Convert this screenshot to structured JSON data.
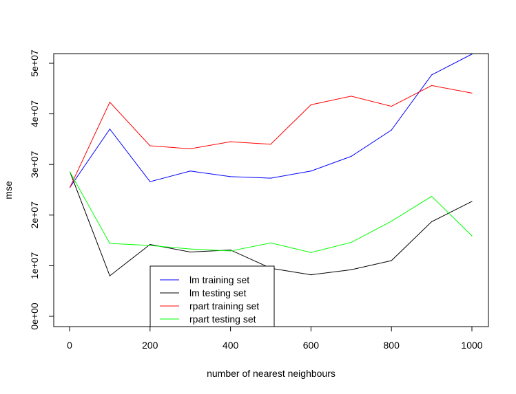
{
  "chart_data": {
    "type": "line",
    "title": "",
    "xlabel": "number of nearest neighbours",
    "ylabel": "mse",
    "xlim": [
      0,
      1000
    ],
    "ylim": [
      0,
      52000000
    ],
    "x_ticks": [
      "0",
      "200",
      "400",
      "600",
      "800",
      "1000"
    ],
    "x_tick_values": [
      0,
      200,
      400,
      600,
      800,
      1000
    ],
    "y_ticks": [
      "0e+00",
      "1e+07",
      "2e+07",
      "3e+07",
      "4e+07",
      "5e+07"
    ],
    "y_tick_values": [
      0,
      10000000,
      20000000,
      30000000,
      40000000,
      50000000
    ],
    "grid": false,
    "legend_position": "bottom-center",
    "x": [
      1,
      100,
      200,
      300,
      400,
      500,
      600,
      700,
      800,
      900,
      1000
    ],
    "series": [
      {
        "name": "lm training set",
        "color": "#0000ff",
        "values": [
          25500000,
          37000000,
          26600000,
          28700000,
          27600000,
          27300000,
          28700000,
          31600000,
          36800000,
          47700000,
          51800000
        ]
      },
      {
        "name": "lm testing set",
        "color": "#000000",
        "values": [
          28500000,
          8000000,
          14200000,
          12700000,
          13100000,
          9500000,
          8200000,
          9200000,
          11000000,
          18700000,
          22700000
        ]
      },
      {
        "name": "rpart training set",
        "color": "#ff0000",
        "values": [
          25500000,
          42300000,
          33700000,
          33100000,
          34500000,
          34000000,
          41800000,
          43500000,
          41500000,
          45600000,
          44100000
        ]
      },
      {
        "name": "rpart testing set",
        "color": "#00ff00",
        "values": [
          28500000,
          14400000,
          14000000,
          13300000,
          12900000,
          14500000,
          12600000,
          14600000,
          18800000,
          23700000,
          15900000
        ]
      }
    ]
  }
}
